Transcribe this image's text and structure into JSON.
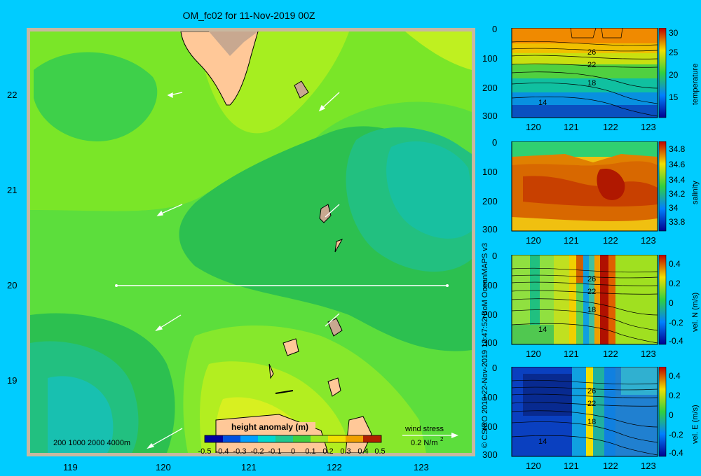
{
  "title": "OM_fc02 for 11-Nov-2019 00Z",
  "map": {
    "lon_ticks": [
      "119",
      "120",
      "121",
      "122",
      "123"
    ],
    "lat_ticks": [
      "22",
      "21",
      "20",
      "19"
    ],
    "depth_legend": "200  1000  2000  4000m",
    "colorbar_title": "height anomaly (m)",
    "colorbar_ticks": [
      "-0.5",
      "-0.4",
      "-0.3",
      "-0.2",
      "-0.1",
      "0",
      "0.1",
      "0.2",
      "0.3",
      "0.4",
      "0.5"
    ],
    "wind_label": "wind stress",
    "wind_scale": "0.2 N/m",
    "wind_scale_exp": "2",
    "section_latitude": 20
  },
  "sections": [
    {
      "label": "temperature",
      "yticks": [
        "0",
        "100",
        "200",
        "300"
      ],
      "xticks": [
        "120",
        "121",
        "122",
        "123"
      ],
      "cticks": [
        "30",
        "25",
        "20",
        "15"
      ],
      "contour_labels": [
        "26",
        "22",
        "18",
        "14"
      ]
    },
    {
      "label": "salinity",
      "yticks": [
        "0",
        "100",
        "200",
        "300"
      ],
      "xticks": [
        "120",
        "121",
        "122",
        "123"
      ],
      "cticks": [
        "34.8",
        "34.6",
        "34.4",
        "34.2",
        "34",
        "33.8"
      ],
      "contour_labels": []
    },
    {
      "label": "vel. N  (m/s)",
      "yticks": [
        "0",
        "100",
        "200",
        "300"
      ],
      "xticks": [
        "120",
        "121",
        "122",
        "123"
      ],
      "cticks": [
        "0.4",
        "0.2",
        "0",
        "-0.2",
        "-0.4"
      ],
      "contour_labels": [
        "26",
        "22",
        "18",
        "14"
      ]
    },
    {
      "label": "vel. E  (m/s)",
      "yticks": [
        "0",
        "100",
        "200",
        "300"
      ],
      "xticks": [
        "120",
        "121",
        "122",
        "123"
      ],
      "cticks": [
        "0.4",
        "0.2",
        "0",
        "-0.2",
        "-0.4"
      ],
      "contour_labels": [
        "26",
        "22",
        "18",
        "14"
      ]
    }
  ],
  "credit": "© CSIRO 2019   22-Nov-2019 12:47:52 BoM OceanMAPS v3"
}
